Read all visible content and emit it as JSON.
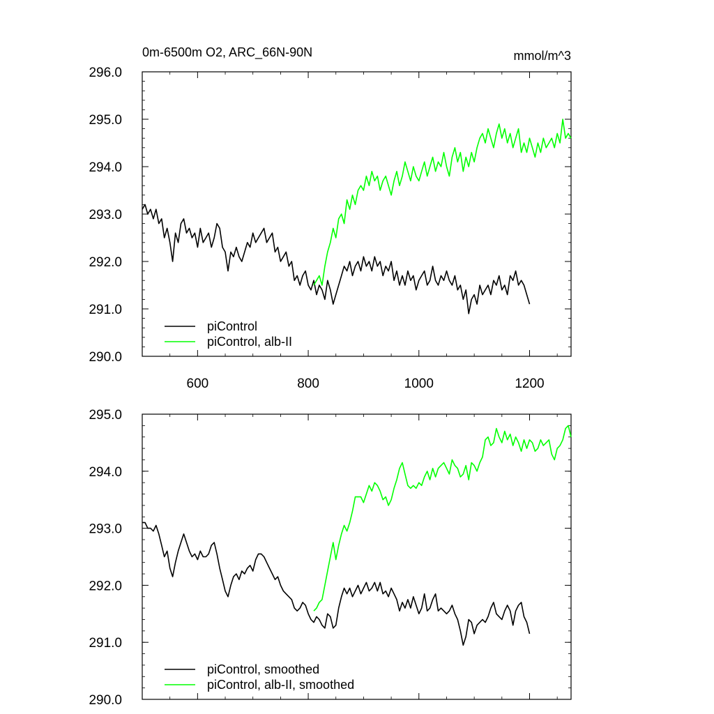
{
  "chart_data": [
    {
      "type": "line",
      "title": "0m-6500m O2, ARC_66N-90N",
      "units": "mmol/m^3",
      "xlim": [
        500,
        1275
      ],
      "ylim": [
        290,
        296
      ],
      "xticks": [
        600,
        800,
        1000,
        1200
      ],
      "xtick_labels": [
        "600",
        "800",
        "1000",
        "1200"
      ],
      "yticks": [
        290,
        291,
        292,
        293,
        294,
        295,
        296
      ],
      "ytick_labels": [
        "290.0",
        "291.0",
        "292.0",
        "293.0",
        "294.0",
        "295.0",
        "296.0"
      ],
      "legend_position": "bottom-left",
      "series": [
        {
          "name": "piControl",
          "color": "#000000",
          "x": [
            500,
            505,
            510,
            515,
            520,
            525,
            530,
            535,
            540,
            545,
            550,
            555,
            560,
            565,
            570,
            575,
            580,
            585,
            590,
            595,
            600,
            605,
            610,
            615,
            620,
            625,
            630,
            635,
            640,
            645,
            650,
            655,
            660,
            665,
            670,
            675,
            680,
            685,
            690,
            695,
            700,
            705,
            710,
            715,
            720,
            725,
            730,
            735,
            740,
            745,
            750,
            755,
            760,
            765,
            770,
            775,
            780,
            785,
            790,
            795,
            800,
            805,
            810,
            815,
            820,
            825,
            830,
            835,
            840,
            845,
            850,
            855,
            860,
            865,
            870,
            875,
            880,
            885,
            890,
            895,
            900,
            905,
            910,
            915,
            920,
            925,
            930,
            935,
            940,
            945,
            950,
            955,
            960,
            965,
            970,
            975,
            980,
            985,
            990,
            995,
            1000,
            1005,
            1010,
            1015,
            1020,
            1025,
            1030,
            1035,
            1040,
            1045,
            1050,
            1055,
            1060,
            1065,
            1070,
            1075,
            1080,
            1085,
            1090,
            1095,
            1100,
            1105,
            1110,
            1115,
            1120,
            1125,
            1130,
            1135,
            1140,
            1145,
            1150,
            1155,
            1160,
            1165,
            1170,
            1175,
            1180,
            1185,
            1190,
            1195,
            1200
          ],
          "y": [
            293.1,
            293.2,
            293.0,
            293.1,
            292.9,
            293.1,
            292.8,
            292.9,
            292.5,
            292.7,
            292.4,
            292.0,
            292.6,
            292.4,
            292.8,
            292.9,
            292.6,
            292.7,
            292.5,
            292.6,
            292.3,
            292.7,
            292.4,
            292.5,
            292.6,
            292.3,
            292.5,
            292.8,
            292.7,
            292.3,
            292.2,
            291.8,
            292.2,
            292.1,
            292.3,
            292.1,
            292.0,
            292.2,
            292.4,
            292.3,
            292.6,
            292.4,
            292.5,
            292.6,
            292.7,
            292.4,
            292.5,
            292.6,
            292.2,
            292.3,
            292.0,
            292.1,
            292.2,
            291.9,
            292.0,
            291.6,
            291.7,
            291.5,
            291.7,
            291.8,
            291.5,
            291.4,
            291.6,
            291.3,
            291.5,
            291.4,
            291.2,
            291.6,
            291.4,
            291.1,
            291.3,
            291.5,
            291.7,
            291.9,
            291.8,
            292.0,
            291.7,
            291.9,
            292.0,
            291.8,
            292.1,
            291.9,
            292.0,
            291.8,
            292.1,
            291.9,
            292.0,
            291.7,
            291.9,
            291.8,
            292.0,
            291.6,
            291.8,
            291.5,
            291.7,
            291.5,
            291.8,
            291.6,
            291.7,
            291.4,
            291.6,
            291.7,
            291.8,
            291.5,
            291.6,
            291.9,
            291.6,
            291.5,
            291.7,
            291.6,
            291.8,
            291.6,
            291.5,
            291.7,
            291.4,
            291.5,
            291.2,
            291.4,
            290.9,
            291.2,
            291.3,
            291.1,
            291.5,
            291.3,
            291.4,
            291.5,
            291.3,
            291.6,
            291.5,
            291.7,
            291.4,
            291.5,
            291.3,
            291.7,
            291.6,
            291.8,
            291.5,
            291.6,
            291.5,
            291.3,
            291.1
          ]
        },
        {
          "name": "piControl, alb-II",
          "color": "#00ff00",
          "x": [
            810,
            815,
            820,
            825,
            830,
            835,
            840,
            845,
            850,
            855,
            860,
            865,
            870,
            875,
            880,
            885,
            890,
            895,
            900,
            905,
            910,
            915,
            920,
            925,
            930,
            935,
            940,
            945,
            950,
            955,
            960,
            965,
            970,
            975,
            980,
            985,
            990,
            995,
            1000,
            1005,
            1010,
            1015,
            1020,
            1025,
            1030,
            1035,
            1040,
            1045,
            1050,
            1055,
            1060,
            1065,
            1070,
            1075,
            1080,
            1085,
            1090,
            1095,
            1100,
            1105,
            1110,
            1115,
            1120,
            1125,
            1130,
            1135,
            1140,
            1145,
            1150,
            1155,
            1160,
            1165,
            1170,
            1175,
            1180,
            1185,
            1190,
            1195,
            1200,
            1205,
            1210,
            1215,
            1220,
            1225,
            1230,
            1235,
            1240,
            1245,
            1250,
            1255,
            1260,
            1265,
            1270,
            1275
          ],
          "y": [
            291.5,
            291.6,
            291.7,
            291.5,
            291.9,
            292.2,
            292.4,
            292.7,
            292.5,
            292.9,
            293.0,
            292.8,
            293.3,
            293.1,
            293.4,
            293.2,
            293.5,
            293.6,
            293.5,
            293.8,
            293.6,
            293.9,
            293.7,
            293.8,
            293.5,
            293.7,
            293.8,
            293.6,
            293.4,
            293.7,
            293.9,
            293.6,
            293.8,
            294.1,
            293.9,
            293.7,
            294.0,
            293.8,
            293.7,
            293.9,
            294.1,
            293.8,
            294.0,
            294.2,
            293.9,
            294.1,
            294.0,
            294.3,
            294.0,
            293.8,
            294.2,
            294.4,
            294.1,
            294.3,
            293.9,
            294.2,
            294.0,
            294.3,
            294.1,
            294.4,
            294.6,
            294.7,
            294.5,
            294.8,
            294.6,
            294.4,
            294.7,
            294.9,
            294.6,
            294.8,
            294.5,
            294.7,
            294.4,
            294.6,
            294.8,
            294.3,
            294.5,
            294.3,
            294.6,
            294.4,
            294.2,
            294.5,
            294.3,
            294.6,
            294.4,
            294.5,
            294.6,
            294.4,
            294.7,
            294.5,
            295.0,
            294.6,
            294.7,
            294.6
          ]
        }
      ]
    },
    {
      "type": "line",
      "xlim": [
        500,
        1275
      ],
      "ylim": [
        290,
        295
      ],
      "xticks": [
        600,
        800,
        1000,
        1200
      ],
      "yticks": [
        290,
        291,
        292,
        293,
        294,
        295
      ],
      "ytick_labels": [
        "290.0",
        "291.0",
        "292.0",
        "293.0",
        "294.0",
        "295.0"
      ],
      "legend_position": "bottom-left",
      "series": [
        {
          "name": "piControl, smoothed",
          "color": "#000000",
          "x": [
            500,
            505,
            510,
            515,
            520,
            525,
            530,
            535,
            540,
            545,
            550,
            555,
            560,
            565,
            570,
            575,
            580,
            585,
            590,
            595,
            600,
            605,
            610,
            615,
            620,
            625,
            630,
            635,
            640,
            645,
            650,
            655,
            660,
            665,
            670,
            675,
            680,
            685,
            690,
            695,
            700,
            705,
            710,
            715,
            720,
            725,
            730,
            735,
            740,
            745,
            750,
            755,
            760,
            765,
            770,
            775,
            780,
            785,
            790,
            795,
            800,
            805,
            810,
            815,
            820,
            825,
            830,
            835,
            840,
            845,
            850,
            855,
            860,
            865,
            870,
            875,
            880,
            885,
            890,
            895,
            900,
            905,
            910,
            915,
            920,
            925,
            930,
            935,
            940,
            945,
            950,
            955,
            960,
            965,
            970,
            975,
            980,
            985,
            990,
            995,
            1000,
            1005,
            1010,
            1015,
            1020,
            1025,
            1030,
            1035,
            1040,
            1045,
            1050,
            1055,
            1060,
            1065,
            1070,
            1075,
            1080,
            1085,
            1090,
            1095,
            1100,
            1105,
            1110,
            1115,
            1120,
            1125,
            1130,
            1135,
            1140,
            1145,
            1150,
            1155,
            1160,
            1165,
            1170,
            1175,
            1180,
            1185,
            1190,
            1195,
            1200
          ],
          "y": [
            293.1,
            293.1,
            293.0,
            293.0,
            292.95,
            293.05,
            292.9,
            292.7,
            292.5,
            292.6,
            292.3,
            292.15,
            292.4,
            292.6,
            292.75,
            292.9,
            292.75,
            292.6,
            292.5,
            292.55,
            292.45,
            292.6,
            292.5,
            292.5,
            292.55,
            292.7,
            292.75,
            292.55,
            292.3,
            292.1,
            291.9,
            291.8,
            292.0,
            292.15,
            292.2,
            292.1,
            292.25,
            292.2,
            292.3,
            292.35,
            292.25,
            292.45,
            292.55,
            292.55,
            292.5,
            292.4,
            292.3,
            292.2,
            292.1,
            292.15,
            292.0,
            291.9,
            291.85,
            291.8,
            291.75,
            291.6,
            291.55,
            291.6,
            291.7,
            291.65,
            291.5,
            291.4,
            291.35,
            291.45,
            291.4,
            291.3,
            291.25,
            291.5,
            291.45,
            291.25,
            291.3,
            291.6,
            291.8,
            291.95,
            291.85,
            291.95,
            291.8,
            291.9,
            292.0,
            291.85,
            291.95,
            292.05,
            291.9,
            291.95,
            292.05,
            291.9,
            292.05,
            291.85,
            291.9,
            291.8,
            291.95,
            291.85,
            291.75,
            291.55,
            291.7,
            291.6,
            291.75,
            291.6,
            291.8,
            291.65,
            291.5,
            291.6,
            291.85,
            291.55,
            291.6,
            291.75,
            291.85,
            291.55,
            291.6,
            291.55,
            291.5,
            291.55,
            291.65,
            291.5,
            291.4,
            291.2,
            290.95,
            291.1,
            291.4,
            291.35,
            291.15,
            291.3,
            291.35,
            291.4,
            291.35,
            291.45,
            291.6,
            291.7,
            291.5,
            291.45,
            291.4,
            291.55,
            291.65,
            291.55,
            291.3,
            291.55,
            291.65,
            291.7,
            291.45,
            291.35,
            291.15
          ]
        },
        {
          "name": "piControl, alb-II, smoothed",
          "color": "#00ff00",
          "x": [
            810,
            815,
            820,
            825,
            830,
            835,
            840,
            845,
            850,
            855,
            860,
            865,
            870,
            875,
            880,
            885,
            890,
            895,
            900,
            905,
            910,
            915,
            920,
            925,
            930,
            935,
            940,
            945,
            950,
            955,
            960,
            965,
            970,
            975,
            980,
            985,
            990,
            995,
            1000,
            1005,
            1010,
            1015,
            1020,
            1025,
            1030,
            1035,
            1040,
            1045,
            1050,
            1055,
            1060,
            1065,
            1070,
            1075,
            1080,
            1085,
            1090,
            1095,
            1100,
            1105,
            1110,
            1115,
            1120,
            1125,
            1130,
            1135,
            1140,
            1145,
            1150,
            1155,
            1160,
            1165,
            1170,
            1175,
            1180,
            1185,
            1190,
            1195,
            1200,
            1205,
            1210,
            1215,
            1220,
            1225,
            1230,
            1235,
            1240,
            1245,
            1250,
            1255,
            1260,
            1265,
            1270,
            1275
          ],
          "y": [
            291.55,
            291.6,
            291.7,
            291.75,
            292.0,
            292.25,
            292.5,
            292.75,
            292.45,
            292.7,
            292.9,
            293.05,
            292.95,
            293.1,
            293.3,
            293.55,
            293.55,
            293.55,
            293.45,
            293.6,
            293.75,
            293.65,
            293.8,
            293.75,
            293.65,
            293.5,
            293.55,
            293.4,
            293.5,
            293.7,
            293.85,
            294.05,
            294.15,
            293.95,
            293.75,
            293.7,
            293.75,
            293.7,
            293.8,
            293.75,
            293.9,
            294.0,
            293.85,
            294.05,
            293.9,
            294.05,
            294.1,
            294.15,
            294.05,
            293.95,
            294.2,
            294.1,
            294.05,
            293.9,
            293.95,
            294.1,
            293.85,
            294.15,
            294.1,
            294.0,
            294.15,
            294.25,
            294.55,
            294.6,
            294.45,
            294.5,
            294.75,
            294.6,
            294.5,
            294.7,
            294.55,
            294.65,
            294.45,
            294.6,
            294.5,
            294.35,
            294.55,
            294.4,
            294.55,
            294.5,
            294.35,
            294.4,
            294.55,
            294.45,
            294.5,
            294.55,
            294.3,
            294.2,
            294.4,
            294.45,
            294.55,
            294.75,
            294.8,
            294.6
          ]
        }
      ]
    }
  ]
}
